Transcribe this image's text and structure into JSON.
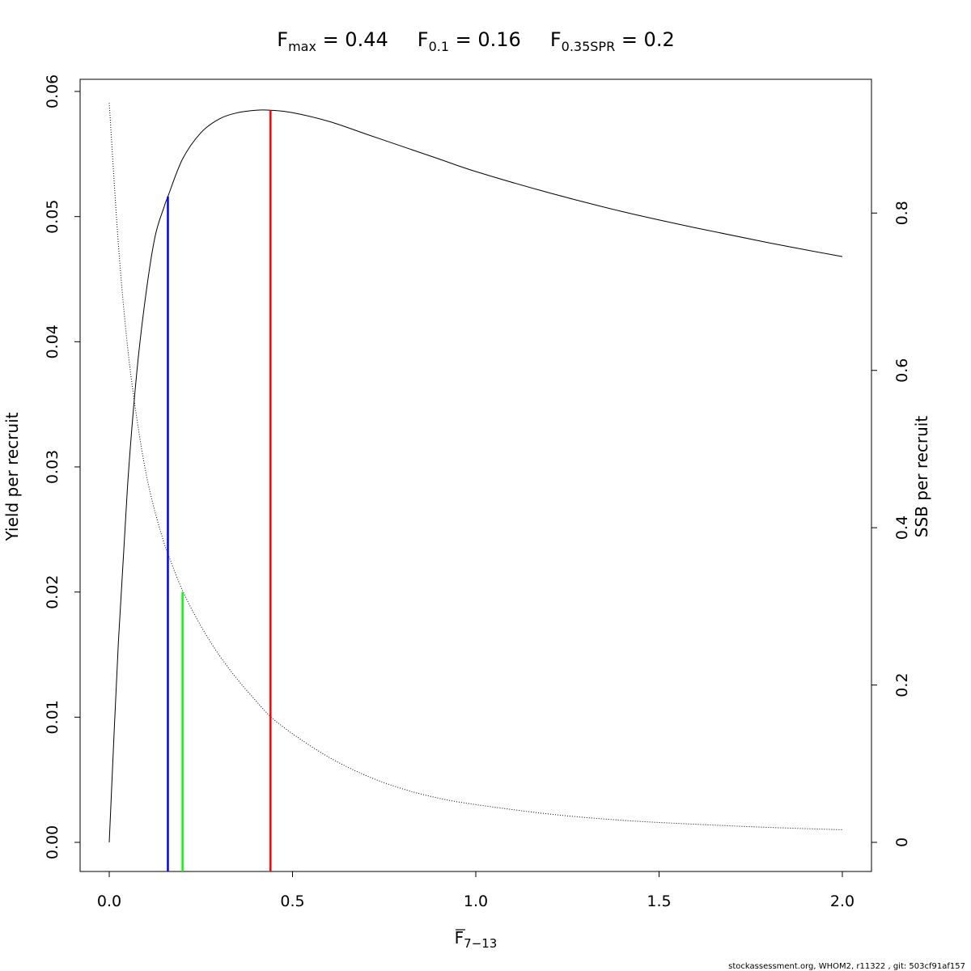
{
  "chart_data": {
    "type": "line",
    "title_parts": [
      {
        "symbol": "F",
        "subscript": "max",
        "value": "= 0.44"
      },
      {
        "symbol": "F",
        "subscript": "0.1",
        "value": "= 0.16"
      },
      {
        "symbol": "F",
        "subscript": "0.35SPR",
        "value": "= 0.2"
      }
    ],
    "xlabel": {
      "symbol": "F",
      "subscript": "7−13",
      "overline": true
    },
    "ylabel_left": "Yield per recruit",
    "ylabel_right": "SSB per recruit",
    "xlim": [
      0,
      2
    ],
    "ylim_left": [
      0,
      0.06
    ],
    "ylim_right": [
      0,
      0.95
    ],
    "x_ticks": [
      "0.0",
      "0.5",
      "1.0",
      "1.5",
      "2.0"
    ],
    "y_left_ticks": [
      "0.00",
      "0.01",
      "0.02",
      "0.03",
      "0.04",
      "0.05",
      "0.06"
    ],
    "y_right_ticks": [
      "0",
      "0.2",
      "0.4",
      "0.6",
      "0.8"
    ],
    "grid": false,
    "legend": "none",
    "series": [
      {
        "axis": "left",
        "style": "solid",
        "color": "#000000",
        "x": [
          0.0,
          0.025,
          0.05,
          0.075,
          0.1,
          0.125,
          0.15,
          0.16,
          0.2,
          0.25,
          0.3,
          0.35,
          0.4,
          0.44,
          0.5,
          0.6,
          0.7,
          0.8,
          0.9,
          1.0,
          1.2,
          1.4,
          1.6,
          1.8,
          2.0
        ],
        "y": [
          0.0,
          0.016,
          0.0285,
          0.0375,
          0.0438,
          0.0484,
          0.0508,
          0.0516,
          0.0546,
          0.0567,
          0.0578,
          0.0583,
          0.0585,
          0.0585,
          0.0583,
          0.0576,
          0.0566,
          0.0556,
          0.0546,
          0.0536,
          0.0519,
          0.0504,
          0.0491,
          0.0479,
          0.0468
        ]
      },
      {
        "axis": "right",
        "style": "dotted",
        "color": "#000000",
        "x": [
          0.0,
          0.025,
          0.05,
          0.075,
          0.1,
          0.125,
          0.15,
          0.16,
          0.2,
          0.25,
          0.3,
          0.35,
          0.4,
          0.44,
          0.5,
          0.6,
          0.7,
          0.8,
          0.9,
          1.0,
          1.2,
          1.4,
          1.6,
          1.8,
          2.0
        ],
        "y": [
          0.94,
          0.76,
          0.63,
          0.54,
          0.47,
          0.42,
          0.38,
          0.367,
          0.32,
          0.275,
          0.238,
          0.207,
          0.18,
          0.16,
          0.138,
          0.108,
          0.085,
          0.068,
          0.056,
          0.048,
          0.036,
          0.028,
          0.023,
          0.019,
          0.016
        ]
      }
    ],
    "reference_lines": [
      {
        "name": "F0.1",
        "x": 0.16,
        "axis": "left",
        "y": 0.0516,
        "color": "#0000ff"
      },
      {
        "name": "F0.35SPR",
        "x": 0.2,
        "axis": "left",
        "y": 0.02,
        "color": "#00ff00"
      },
      {
        "name": "Fmax",
        "x": 0.44,
        "axis": "left",
        "y": 0.0585,
        "color": "#ff0000"
      }
    ]
  },
  "footer": "stockassessment.org, WHOM2, r11322 , git: 503cf91af157"
}
